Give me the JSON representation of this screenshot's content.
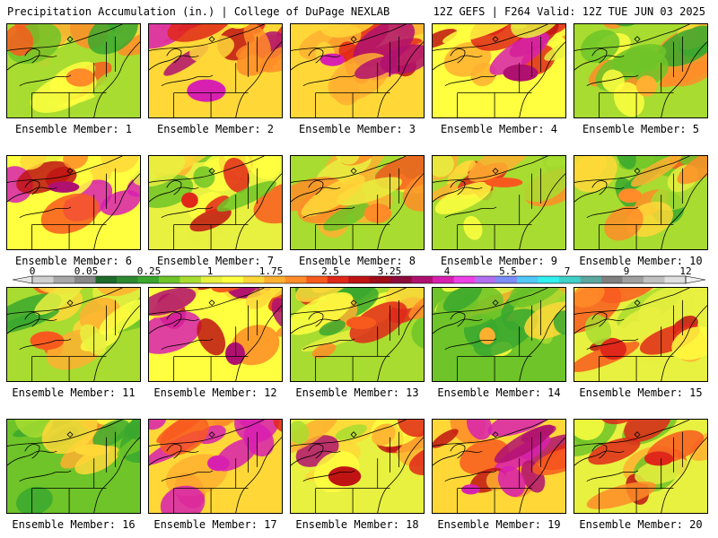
{
  "header": {
    "title": "Precipitation Accumulation (in.) | College of DuPage NEXLAB",
    "run": "12Z GEFS | F264 Valid: 12Z TUE JUN 03 2025"
  },
  "colors": {
    "scale": [
      "#d0d0d0",
      "#a8a8a8",
      "#888888",
      "#1e6b2a",
      "#2e8a30",
      "#3aa82e",
      "#6ec428",
      "#a8dc30",
      "#e8f040",
      "#ffff40",
      "#ffd838",
      "#ffb030",
      "#ff8c28",
      "#f85a1e",
      "#e0281a",
      "#c01414",
      "#a00c18",
      "#8c0a3c",
      "#b01070",
      "#d820b0",
      "#ee40e8",
      "#b070f0",
      "#7c8cf8",
      "#50c8f8",
      "#30f0f0",
      "#40d0c8",
      "#5aa8a0",
      "#808080",
      "#a0a0a0",
      "#c0c0c0",
      "#e0e0e0"
    ],
    "border": "#000000"
  },
  "legend": {
    "unit": "in.",
    "ticks": [
      "0",
      "0.05",
      "0.25",
      "1",
      "1.75",
      "2.5",
      "3.25",
      "4",
      "5.5",
      "7",
      "9",
      "12"
    ]
  },
  "members": [
    {
      "label": "Ensemble Member: 1",
      "intensity": 0.3
    },
    {
      "label": "Ensemble Member: 2",
      "intensity": 0.72
    },
    {
      "label": "Ensemble Member: 3",
      "intensity": 0.75
    },
    {
      "label": "Ensemble Member: 4",
      "intensity": 0.62
    },
    {
      "label": "Ensemble Member: 5",
      "intensity": 0.28
    },
    {
      "label": "Ensemble Member: 6",
      "intensity": 0.62
    },
    {
      "label": "Ensemble Member: 7",
      "intensity": 0.45
    },
    {
      "label": "Ensemble Member: 8",
      "intensity": 0.35
    },
    {
      "label": "Ensemble Member: 9",
      "intensity": 0.38
    },
    {
      "label": "Ensemble Member: 10",
      "intensity": 0.32
    },
    {
      "label": "Ensemble Member: 11",
      "intensity": 0.4
    },
    {
      "label": "Ensemble Member: 12",
      "intensity": 0.65
    },
    {
      "label": "Ensemble Member: 13",
      "intensity": 0.4
    },
    {
      "label": "Ensemble Member: 14",
      "intensity": 0.22
    },
    {
      "label": "Ensemble Member: 15",
      "intensity": 0.45
    },
    {
      "label": "Ensemble Member: 16",
      "intensity": 0.18
    },
    {
      "label": "Ensemble Member: 17",
      "intensity": 0.82
    },
    {
      "label": "Ensemble Member: 18",
      "intensity": 0.55
    },
    {
      "label": "Ensemble Member: 19",
      "intensity": 0.82
    },
    {
      "label": "Ensemble Member: 20",
      "intensity": 0.45
    }
  ]
}
